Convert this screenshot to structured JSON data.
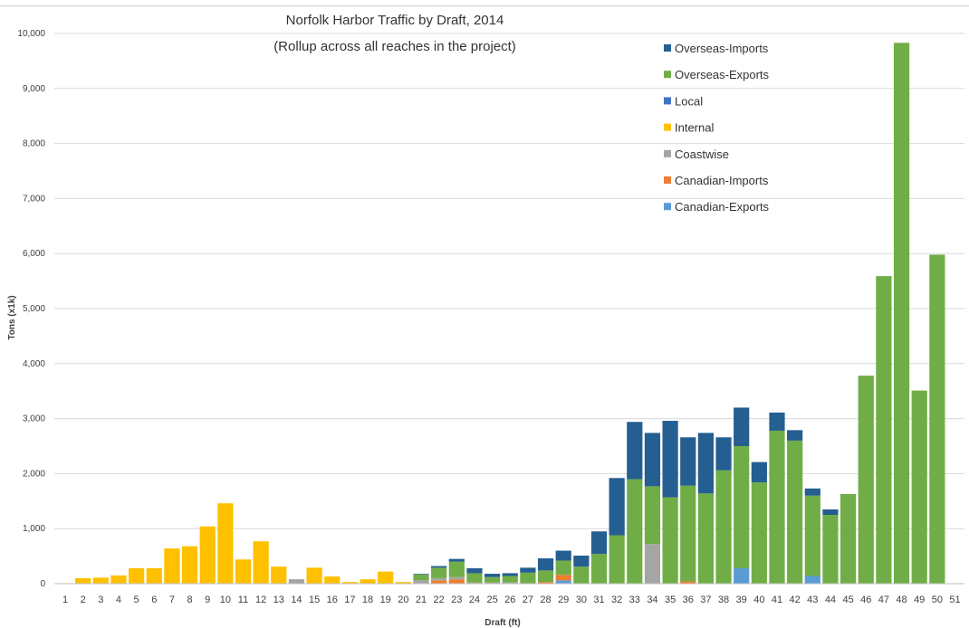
{
  "chart_data": {
    "type": "bar",
    "stacked": true,
    "title": "Norfolk Harbor Traffic by Draft, 2014",
    "subtitle": "(Rollup across all reaches in the project)",
    "xlabel": "Draft (ft)",
    "ylabel": "Tons (x1k)",
    "ylim": [
      0,
      10000
    ],
    "yticks": [
      0,
      1000,
      2000,
      3000,
      4000,
      5000,
      6000,
      7000,
      8000,
      9000,
      10000
    ],
    "ytick_labels": [
      "0",
      "1,000",
      "2,000",
      "3,000",
      "4,000",
      "5,000",
      "6,000",
      "7,000",
      "8,000",
      "9,000",
      "10,000"
    ],
    "grid": "horizontal",
    "legend_position": "top-right",
    "categories": [
      "1",
      "2",
      "3",
      "4",
      "5",
      "6",
      "7",
      "8",
      "9",
      "10",
      "11",
      "12",
      "13",
      "14",
      "15",
      "16",
      "17",
      "18",
      "19",
      "20",
      "21",
      "22",
      "23",
      "24",
      "25",
      "26",
      "27",
      "28",
      "29",
      "30",
      "31",
      "32",
      "33",
      "34",
      "35",
      "36",
      "37",
      "38",
      "39",
      "40",
      "41",
      "42",
      "43",
      "44",
      "45",
      "46",
      "47",
      "48",
      "49",
      "50",
      "51"
    ],
    "series": [
      {
        "name": "Canadian-Exports",
        "color": "#5b9bd5",
        "values": [
          0,
          0,
          0,
          0,
          0,
          0,
          0,
          0,
          0,
          0,
          0,
          0,
          0,
          0,
          0,
          0,
          0,
          0,
          0,
          0,
          0,
          0,
          0,
          0,
          0,
          0,
          0,
          0,
          60,
          0,
          0,
          0,
          0,
          0,
          0,
          0,
          0,
          0,
          280,
          0,
          0,
          0,
          140,
          0,
          0,
          0,
          0,
          0,
          0,
          0,
          0
        ]
      },
      {
        "name": "Canadian-Imports",
        "color": "#ed7d31",
        "values": [
          0,
          0,
          0,
          0,
          0,
          0,
          0,
          0,
          0,
          0,
          0,
          0,
          0,
          0,
          0,
          0,
          0,
          0,
          0,
          0,
          0,
          60,
          80,
          0,
          0,
          0,
          0,
          30,
          100,
          0,
          0,
          0,
          0,
          0,
          0,
          40,
          0,
          0,
          0,
          0,
          0,
          0,
          0,
          0,
          0,
          0,
          0,
          0,
          0,
          0,
          0
        ]
      },
      {
        "name": "Coastwise",
        "color": "#a5a5a5",
        "values": [
          0,
          0,
          0,
          0,
          0,
          0,
          0,
          0,
          0,
          0,
          0,
          0,
          0,
          80,
          0,
          0,
          0,
          0,
          0,
          0,
          60,
          40,
          40,
          20,
          20,
          20,
          0,
          0,
          0,
          0,
          0,
          0,
          0,
          720,
          0,
          0,
          0,
          0,
          0,
          0,
          0,
          0,
          0,
          0,
          0,
          0,
          0,
          0,
          0,
          0,
          0
        ]
      },
      {
        "name": "Internal",
        "color": "#ffc000",
        "values": [
          10,
          100,
          110,
          150,
          280,
          280,
          640,
          680,
          1040,
          1460,
          440,
          770,
          310,
          0,
          290,
          130,
          30,
          80,
          220,
          30,
          0,
          0,
          0,
          0,
          0,
          0,
          0,
          0,
          0,
          0,
          0,
          0,
          0,
          0,
          0,
          0,
          0,
          0,
          0,
          0,
          0,
          0,
          0,
          0,
          0,
          0,
          0,
          0,
          0,
          0,
          0
        ]
      },
      {
        "name": "Local",
        "color": "#4472c4",
        "values": [
          0,
          0,
          0,
          0,
          0,
          0,
          0,
          0,
          0,
          0,
          0,
          0,
          0,
          0,
          0,
          0,
          0,
          0,
          0,
          0,
          0,
          0,
          0,
          0,
          0,
          0,
          0,
          0,
          0,
          0,
          0,
          0,
          0,
          0,
          0,
          0,
          0,
          0,
          0,
          0,
          0,
          0,
          0,
          0,
          0,
          0,
          0,
          0,
          0,
          0,
          0
        ]
      },
      {
        "name": "Overseas-Exports",
        "color": "#70ad47",
        "values": [
          0,
          0,
          0,
          0,
          0,
          0,
          0,
          0,
          0,
          0,
          0,
          0,
          0,
          0,
          0,
          0,
          0,
          0,
          0,
          0,
          110,
          190,
          280,
          170,
          100,
          120,
          200,
          210,
          260,
          310,
          540,
          880,
          1900,
          1050,
          1570,
          1740,
          1640,
          2060,
          2220,
          1840,
          2780,
          2600,
          1460,
          1250,
          1630,
          3780,
          5590,
          9830,
          3510,
          5980,
          0
        ]
      },
      {
        "name": "Overseas-Imports",
        "color": "#255e91",
        "values": [
          0,
          0,
          0,
          0,
          0,
          0,
          0,
          0,
          0,
          0,
          0,
          0,
          0,
          0,
          0,
          0,
          0,
          0,
          0,
          0,
          10,
          30,
          50,
          90,
          60,
          50,
          90,
          220,
          180,
          200,
          410,
          1040,
          1040,
          970,
          1390,
          880,
          1100,
          600,
          700,
          370,
          330,
          190,
          130,
          100,
          0,
          0,
          0,
          0,
          0,
          0,
          0
        ]
      }
    ]
  }
}
